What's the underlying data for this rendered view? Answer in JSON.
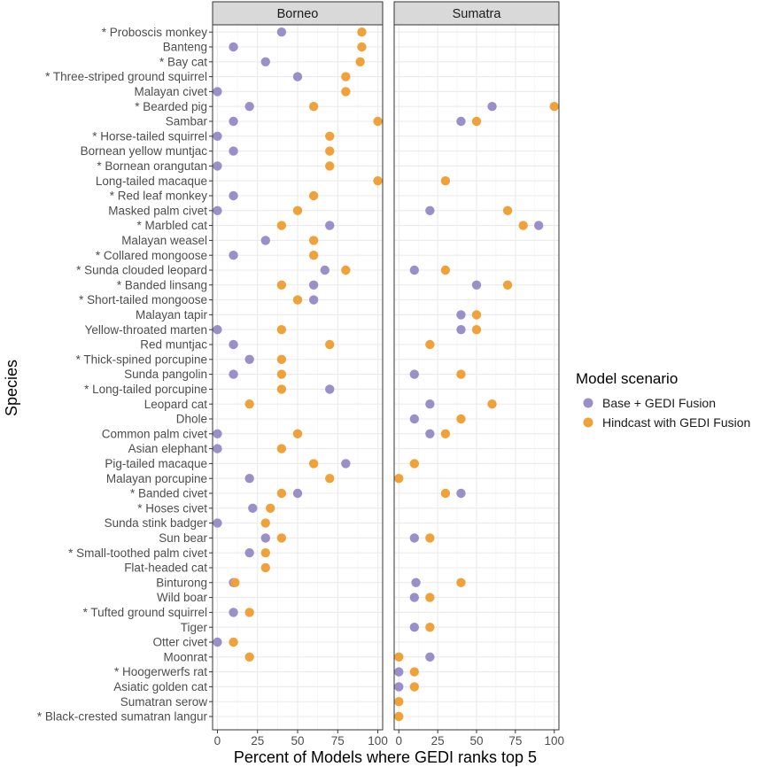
{
  "chart_data": {
    "type": "dot",
    "xlabel": "Percent of Models where GEDI ranks top 5",
    "ylabel": "Species",
    "xlim": [
      -3,
      103
    ],
    "xticks": [
      0,
      25,
      50,
      75,
      100
    ],
    "xtick_labels": [
      "0",
      "25",
      "50",
      "75",
      "100"
    ],
    "grid": true,
    "legend": {
      "title": "Model scenario",
      "position": "right",
      "entries": [
        {
          "name": "Base + GEDI Fusion",
          "color": "#9a8fc7"
        },
        {
          "name": "Hindcast with GEDI Fusion",
          "color": "#f0a23a"
        }
      ]
    },
    "species": [
      "* Proboscis monkey",
      "Banteng",
      "* Bay cat",
      "* Three-striped ground squirrel",
      "Malayan civet",
      "* Bearded pig",
      "Sambar",
      "* Horse-tailed squirrel",
      "Bornean yellow muntjac",
      "* Bornean orangutan",
      "Long-tailed macaque",
      "* Red leaf monkey",
      "Masked palm civet",
      "* Marbled cat",
      "Malayan weasel",
      "* Collared mongoose",
      "* Sunda clouded leopard",
      "* Banded linsang",
      "* Short-tailed mongoose",
      "Malayan tapir",
      "Yellow-throated marten",
      "Red muntjac",
      "* Thick-spined porcupine",
      "Sunda pangolin",
      "* Long-tailed porcupine",
      "Leopard cat",
      "Dhole",
      "Common palm civet",
      "Asian elephant",
      "Pig-tailed macaque",
      "Malayan porcupine",
      "* Banded civet",
      "* Hoses civet",
      "Sunda stink badger",
      "Sun bear",
      "* Small-toothed palm civet",
      "Flat-headed cat",
      "Binturong",
      "Wild boar",
      "* Tufted ground squirrel",
      "Tiger",
      "Otter civet",
      "Moonrat",
      "* Hoogerwerfs rat",
      "Asiatic golden cat",
      "Sumatran serow",
      "* Black-crested sumatran langur"
    ],
    "panels": [
      {
        "name": "Borneo",
        "series": [
          {
            "name": "Base + GEDI Fusion",
            "points": [
              {
                "species": "* Proboscis monkey",
                "value": 40
              },
              {
                "species": "Banteng",
                "value": 10
              },
              {
                "species": "* Bay cat",
                "value": 30
              },
              {
                "species": "* Three-striped ground squirrel",
                "value": 50
              },
              {
                "species": "Malayan civet",
                "value": 0
              },
              {
                "species": "* Bearded pig",
                "value": 20
              },
              {
                "species": "Sambar",
                "value": 10
              },
              {
                "species": "* Horse-tailed squirrel",
                "value": 0
              },
              {
                "species": "Bornean yellow muntjac",
                "value": 10
              },
              {
                "species": "* Bornean orangutan",
                "value": 0
              },
              {
                "species": "* Red leaf monkey",
                "value": 10
              },
              {
                "species": "Masked palm civet",
                "value": 0
              },
              {
                "species": "* Marbled cat",
                "value": 70
              },
              {
                "species": "Malayan weasel",
                "value": 30
              },
              {
                "species": "* Collared mongoose",
                "value": 10
              },
              {
                "species": "* Sunda clouded leopard",
                "value": 67
              },
              {
                "species": "* Banded linsang",
                "value": 60
              },
              {
                "species": "* Short-tailed mongoose",
                "value": 60
              },
              {
                "species": "Yellow-throated marten",
                "value": 0
              },
              {
                "species": "Red muntjac",
                "value": 10
              },
              {
                "species": "* Thick-spined porcupine",
                "value": 20
              },
              {
                "species": "Sunda pangolin",
                "value": 10
              },
              {
                "species": "* Long-tailed porcupine",
                "value": 70
              },
              {
                "species": "Common palm civet",
                "value": 0
              },
              {
                "species": "Asian elephant",
                "value": 0
              },
              {
                "species": "Pig-tailed macaque",
                "value": 80
              },
              {
                "species": "Malayan porcupine",
                "value": 20
              },
              {
                "species": "* Banded civet",
                "value": 50
              },
              {
                "species": "* Hoses civet",
                "value": 22
              },
              {
                "species": "Sunda stink badger",
                "value": 0
              },
              {
                "species": "Sun bear",
                "value": 30
              },
              {
                "species": "* Small-toothed palm civet",
                "value": 20
              },
              {
                "species": "Binturong",
                "value": 10
              },
              {
                "species": "* Tufted ground squirrel",
                "value": 10
              },
              {
                "species": "Otter civet",
                "value": 0
              }
            ]
          },
          {
            "name": "Hindcast with GEDI Fusion",
            "points": [
              {
                "species": "* Proboscis monkey",
                "value": 90
              },
              {
                "species": "Banteng",
                "value": 90
              },
              {
                "species": "* Bay cat",
                "value": 89
              },
              {
                "species": "* Three-striped ground squirrel",
                "value": 80
              },
              {
                "species": "Malayan civet",
                "value": 80
              },
              {
                "species": "* Bearded pig",
                "value": 60
              },
              {
                "species": "Sambar",
                "value": 100
              },
              {
                "species": "* Horse-tailed squirrel",
                "value": 70
              },
              {
                "species": "Bornean yellow muntjac",
                "value": 70
              },
              {
                "species": "* Bornean orangutan",
                "value": 70
              },
              {
                "species": "Long-tailed macaque",
                "value": 100
              },
              {
                "species": "* Red leaf monkey",
                "value": 60
              },
              {
                "species": "Masked palm civet",
                "value": 50
              },
              {
                "species": "* Marbled cat",
                "value": 40
              },
              {
                "species": "Malayan weasel",
                "value": 60
              },
              {
                "species": "* Collared mongoose",
                "value": 60
              },
              {
                "species": "* Sunda clouded leopard",
                "value": 80
              },
              {
                "species": "* Banded linsang",
                "value": 40
              },
              {
                "species": "* Short-tailed mongoose",
                "value": 50
              },
              {
                "species": "Yellow-throated marten",
                "value": 40
              },
              {
                "species": "Red muntjac",
                "value": 70
              },
              {
                "species": "* Thick-spined porcupine",
                "value": 40
              },
              {
                "species": "Sunda pangolin",
                "value": 40
              },
              {
                "species": "* Long-tailed porcupine",
                "value": 40
              },
              {
                "species": "Leopard cat",
                "value": 20
              },
              {
                "species": "Common palm civet",
                "value": 50
              },
              {
                "species": "Asian elephant",
                "value": 40
              },
              {
                "species": "Pig-tailed macaque",
                "value": 60
              },
              {
                "species": "Malayan porcupine",
                "value": 70
              },
              {
                "species": "* Banded civet",
                "value": 40
              },
              {
                "species": "* Hoses civet",
                "value": 33
              },
              {
                "species": "Sunda stink badger",
                "value": 30
              },
              {
                "species": "Sun bear",
                "value": 40
              },
              {
                "species": "* Small-toothed palm civet",
                "value": 30
              },
              {
                "species": "Flat-headed cat",
                "value": 30
              },
              {
                "species": "Binturong",
                "value": 11
              },
              {
                "species": "* Tufted ground squirrel",
                "value": 20
              },
              {
                "species": "Otter civet",
                "value": 10
              },
              {
                "species": "Moonrat",
                "value": 20
              }
            ]
          }
        ]
      },
      {
        "name": "Sumatra",
        "series": [
          {
            "name": "Base + GEDI Fusion",
            "points": [
              {
                "species": "* Bearded pig",
                "value": 60
              },
              {
                "species": "Sambar",
                "value": 40
              },
              {
                "species": "Masked palm civet",
                "value": 20
              },
              {
                "species": "* Marbled cat",
                "value": 90
              },
              {
                "species": "* Sunda clouded leopard",
                "value": 10
              },
              {
                "species": "* Banded linsang",
                "value": 50
              },
              {
                "species": "Malayan tapir",
                "value": 40
              },
              {
                "species": "Yellow-throated marten",
                "value": 40
              },
              {
                "species": "Sunda pangolin",
                "value": 10
              },
              {
                "species": "Leopard cat",
                "value": 20
              },
              {
                "species": "Dhole",
                "value": 10
              },
              {
                "species": "Common palm civet",
                "value": 20
              },
              {
                "species": "* Banded civet",
                "value": 40
              },
              {
                "species": "Sun bear",
                "value": 10
              },
              {
                "species": "Binturong",
                "value": 11
              },
              {
                "species": "Wild boar",
                "value": 10
              },
              {
                "species": "Tiger",
                "value": 10
              },
              {
                "species": "Moonrat",
                "value": 20
              },
              {
                "species": "* Hoogerwerfs rat",
                "value": 0
              },
              {
                "species": "Asiatic golden cat",
                "value": 0
              }
            ]
          },
          {
            "name": "Hindcast with GEDI Fusion",
            "points": [
              {
                "species": "* Bearded pig",
                "value": 100
              },
              {
                "species": "Sambar",
                "value": 50
              },
              {
                "species": "Long-tailed macaque",
                "value": 30
              },
              {
                "species": "Masked palm civet",
                "value": 70
              },
              {
                "species": "* Marbled cat",
                "value": 80
              },
              {
                "species": "* Sunda clouded leopard",
                "value": 30
              },
              {
                "species": "* Banded linsang",
                "value": 70
              },
              {
                "species": "Malayan tapir",
                "value": 50
              },
              {
                "species": "Yellow-throated marten",
                "value": 50
              },
              {
                "species": "Red muntjac",
                "value": 20
              },
              {
                "species": "Sunda pangolin",
                "value": 40
              },
              {
                "species": "Leopard cat",
                "value": 60
              },
              {
                "species": "Dhole",
                "value": 40
              },
              {
                "species": "Common palm civet",
                "value": 30
              },
              {
                "species": "Pig-tailed macaque",
                "value": 10
              },
              {
                "species": "Malayan porcupine",
                "value": 0
              },
              {
                "species": "* Banded civet",
                "value": 30
              },
              {
                "species": "Sun bear",
                "value": 20
              },
              {
                "species": "Binturong",
                "value": 40
              },
              {
                "species": "Wild boar",
                "value": 20
              },
              {
                "species": "Tiger",
                "value": 20
              },
              {
                "species": "Moonrat",
                "value": 0
              },
              {
                "species": "* Hoogerwerfs rat",
                "value": 10
              },
              {
                "species": "Asiatic golden cat",
                "value": 10
              },
              {
                "species": "Sumatran serow",
                "value": 0
              },
              {
                "species": "* Black-crested sumatran langur",
                "value": 0
              }
            ]
          }
        ]
      }
    ]
  }
}
